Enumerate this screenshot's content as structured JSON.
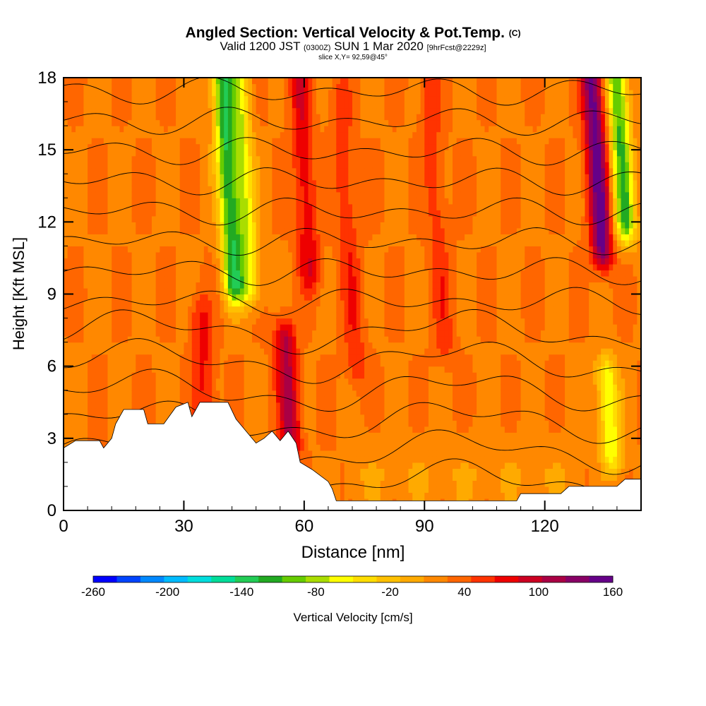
{
  "chart_data": {
    "type": "heatmap",
    "title": "Angled Section: Vertical Velocity & Pot.Temp.",
    "title_mark": "(C)",
    "subtitle_main": "Valid 1200 JST",
    "subtitle_utc": "(0300Z)",
    "subtitle_date": "SUN 1 Mar 2020",
    "subtitle_fcst": "[9hrFcst@2229z]",
    "slice_label": "slice X,Y= 92,59@45°",
    "xlabel": "Distance [nm]",
    "ylabel": "Height [Kft MSL]",
    "xlim": [
      0,
      144
    ],
    "ylim": [
      0,
      18
    ],
    "x_ticks": [
      "0",
      "30",
      "60",
      "90",
      "120"
    ],
    "y_ticks": [
      "0",
      "3",
      "6",
      "9",
      "12",
      "15",
      "18"
    ],
    "colorbar": {
      "label": "Vertical Velocity [cm/s]",
      "tick_labels": [
        "-260",
        "-200",
        "-140",
        "-80",
        "-20",
        "40",
        "100",
        "160"
      ],
      "colors": [
        "#0000ff",
        "#0044ff",
        "#0088ff",
        "#00bbff",
        "#00dddd",
        "#00dd99",
        "#22cc55",
        "#22aa22",
        "#66cc00",
        "#aadd00",
        "#ffff00",
        "#ffdd00",
        "#ffc000",
        "#ffaa00",
        "#ff8800",
        "#ff6600",
        "#ff3300",
        "#ee0000",
        "#cc0022",
        "#aa0044",
        "#880066",
        "#660088"
      ]
    },
    "velocity_features": [
      {
        "x": 41,
        "z_range": [
          9.5,
          18
        ],
        "value": -120
      },
      {
        "x": 45,
        "z_range": [
          9.5,
          18
        ],
        "value": -60
      },
      {
        "x": 60,
        "z_range": [
          10,
          18
        ],
        "value": 80
      },
      {
        "x": 56,
        "z_range": [
          3,
          7
        ],
        "value": 110
      },
      {
        "x": 35,
        "z_range": [
          3.5,
          8
        ],
        "value": 70
      },
      {
        "x": 71,
        "z_range": [
          6,
          17
        ],
        "value": 60
      },
      {
        "x": 93,
        "z_range": [
          7,
          18
        ],
        "value": 55
      },
      {
        "x": 133,
        "z_range": [
          11,
          18
        ],
        "value": 150
      },
      {
        "x": 139,
        "z_range": [
          12,
          18
        ],
        "value": -110
      },
      {
        "x": 136,
        "z_range": [
          2.5,
          5.5
        ],
        "value": -70
      }
    ],
    "theta_contours_k": [
      270,
      275,
      280,
      285,
      290,
      295,
      300,
      305,
      310,
      315,
      320,
      325,
      330,
      335
    ],
    "terrain_kft": [
      [
        0,
        2.6
      ],
      [
        3,
        2.9
      ],
      [
        9,
        2.9
      ],
      [
        10,
        2.6
      ],
      [
        12,
        3
      ],
      [
        13,
        3.6
      ],
      [
        15,
        4.2
      ],
      [
        20,
        4.2
      ],
      [
        21,
        3.6
      ],
      [
        25,
        3.6
      ],
      [
        28,
        4.3
      ],
      [
        31,
        4.5
      ],
      [
        32,
        3.9
      ],
      [
        34,
        4.5
      ],
      [
        41,
        4.5
      ],
      [
        43,
        3.8
      ],
      [
        46,
        3.2
      ],
      [
        48,
        2.8
      ],
      [
        50,
        3.0
      ],
      [
        52,
        3.3
      ],
      [
        54,
        2.9
      ],
      [
        56,
        3.3
      ],
      [
        58,
        2.8
      ],
      [
        59,
        2.0
      ],
      [
        62,
        1.7
      ],
      [
        66,
        1.2
      ],
      [
        67,
        0.9
      ],
      [
        68,
        0.4
      ],
      [
        76,
        0.4
      ],
      [
        113,
        0.4
      ],
      [
        114,
        0.7
      ],
      [
        124,
        0.7
      ],
      [
        126,
        1
      ],
      [
        138,
        1
      ],
      [
        140,
        1.3
      ],
      [
        144,
        1.3
      ]
    ]
  }
}
